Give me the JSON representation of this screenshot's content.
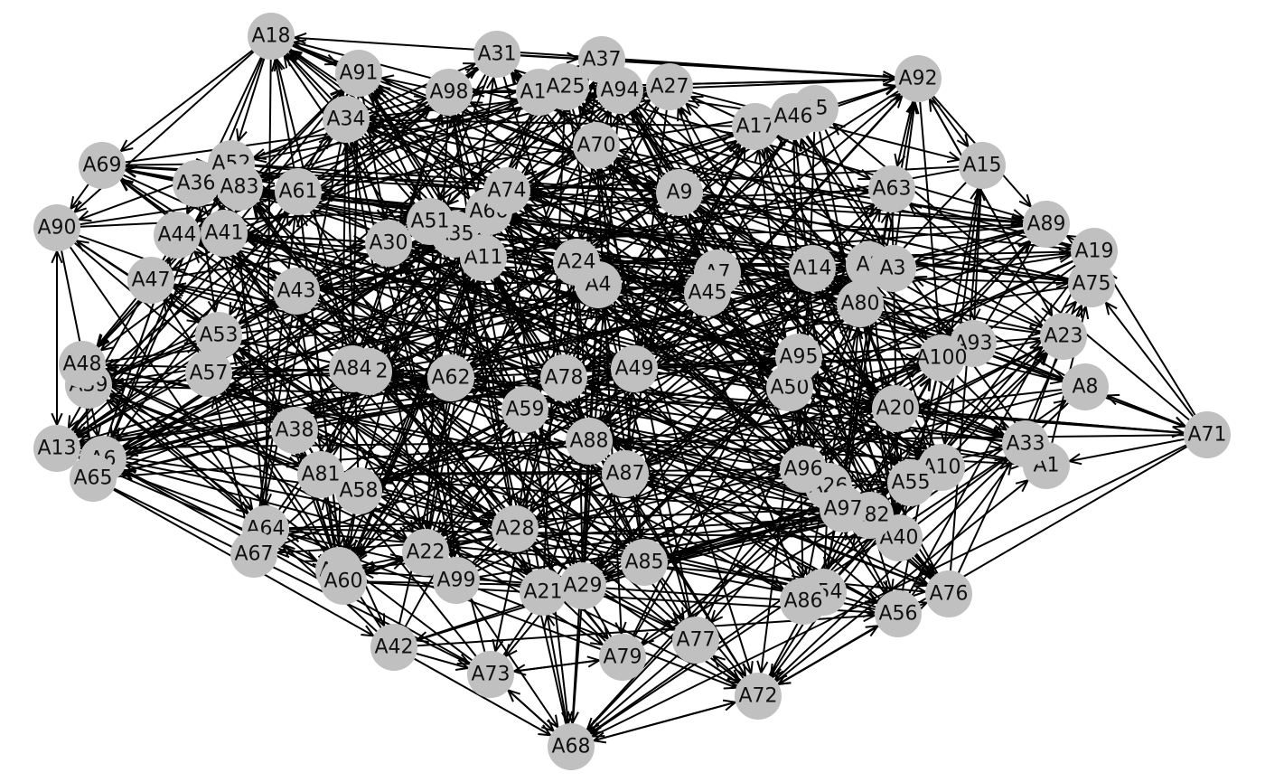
{
  "graph": {
    "directed": true,
    "node_color": "#c0c0c0",
    "edge_color": "#000000",
    "nodes": [
      "A1",
      "A2",
      "A3",
      "A4",
      "A5",
      "A6",
      "A7",
      "A8",
      "A9",
      "A10",
      "A11",
      "A12",
      "A13",
      "A14",
      "A15",
      "A16",
      "A17",
      "A18",
      "A19",
      "A20",
      "A21",
      "A22",
      "A23",
      "A24",
      "A25",
      "A26",
      "A27",
      "A28",
      "A29",
      "A30",
      "A31",
      "A32",
      "A33",
      "A34",
      "A35",
      "A36",
      "A37",
      "A38",
      "A39",
      "A40",
      "A41",
      "A42",
      "A43",
      "A44",
      "A45",
      "A46",
      "A47",
      "A48",
      "A49",
      "A50",
      "A51",
      "A52",
      "A53",
      "A54",
      "A55",
      "A56",
      "A57",
      "A58",
      "A59",
      "A60",
      "A61",
      "A62",
      "A63",
      "A64",
      "A65",
      "A66",
      "A67",
      "A68",
      "A69",
      "A70",
      "A71",
      "A72",
      "A73",
      "A74",
      "A75",
      "A76",
      "A77",
      "A78",
      "A79",
      "A80",
      "A81",
      "A82",
      "A83",
      "A84",
      "A85",
      "A86",
      "A87",
      "A88",
      "A89",
      "A90",
      "A91",
      "A92",
      "A93",
      "A94",
      "A95",
      "A96",
      "A97",
      "A98",
      "A99",
      "A100"
    ]
  }
}
